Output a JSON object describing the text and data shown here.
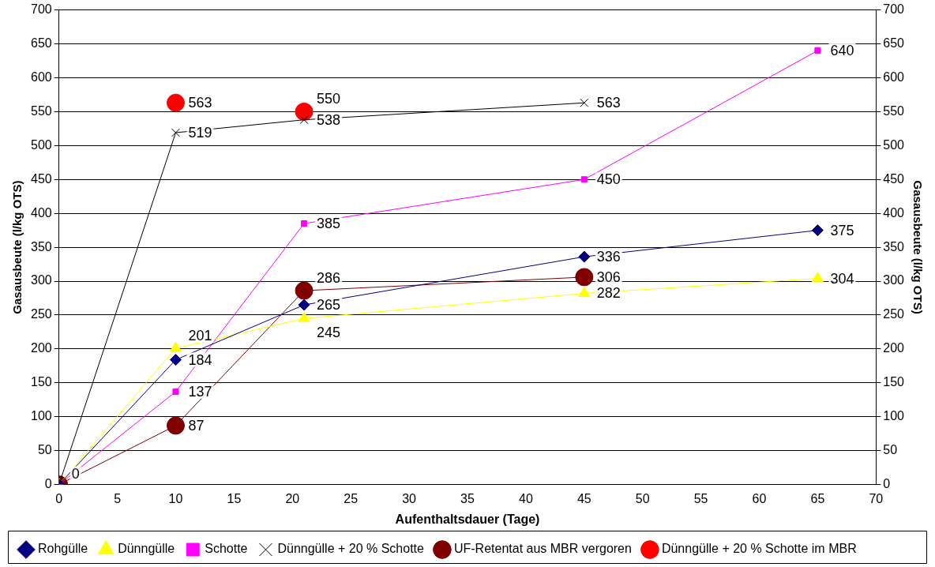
{
  "chart_data": {
    "type": "line",
    "xlabel": "Aufenthaltsdauer (Tage)",
    "ylabel": "Gasausbeute (l/kg OTS)",
    "y2label": "Gasausbeute (l/kg OTS)",
    "xlim": [
      0,
      70
    ],
    "xticks": [
      0,
      5,
      10,
      15,
      20,
      25,
      30,
      35,
      40,
      45,
      50,
      55,
      60,
      65,
      70
    ],
    "ylim": [
      0,
      700
    ],
    "yticks": [
      0,
      50,
      100,
      150,
      200,
      250,
      300,
      350,
      400,
      450,
      500,
      550,
      600,
      650,
      700
    ],
    "y2lim": [
      0,
      700
    ],
    "y2ticks": [
      0,
      50,
      100,
      150,
      200,
      250,
      300,
      350,
      400,
      450,
      500,
      550,
      600,
      650,
      700
    ],
    "grid": "y",
    "legend": "bottom",
    "series": [
      {
        "name": "Rohgülle",
        "color": "#000080",
        "marker": "diamond",
        "x": [
          0,
          10,
          21,
          45,
          65
        ],
        "values": [
          0,
          184,
          265,
          336,
          375
        ],
        "value_labels": [
          "0",
          "184",
          "265",
          "336",
          "375"
        ]
      },
      {
        "name": "Dünngülle",
        "color": "#ffff00",
        "marker": "triangle",
        "x": [
          0,
          10,
          21,
          45,
          65
        ],
        "values": [
          0,
          201,
          245,
          282,
          304
        ],
        "value_labels": [
          null,
          "201",
          "245",
          "282",
          "304"
        ]
      },
      {
        "name": "Schotte",
        "color": "#ff00ff",
        "marker": "square",
        "x": [
          0,
          10,
          21,
          45,
          65
        ],
        "values": [
          0,
          137,
          385,
          450,
          640
        ],
        "value_labels": [
          null,
          "137",
          "385",
          "450",
          "640"
        ]
      },
      {
        "name": "Dünngülle + 20 % Schotte",
        "color": "#000000",
        "marker": "cross",
        "x": [
          0,
          10,
          21,
          45
        ],
        "values": [
          0,
          519,
          538,
          563
        ],
        "value_labels": [
          null,
          "519",
          "538",
          "563"
        ]
      },
      {
        "name": "UF-Retentat aus MBR vergoren",
        "color": "#800000",
        "marker": "circle",
        "x": [
          0,
          10,
          21,
          45
        ],
        "values": [
          0,
          87,
          286,
          306
        ],
        "value_labels": [
          null,
          "87",
          "286",
          "306"
        ]
      },
      {
        "name": "Dünngülle + 20 % Schotte im MBR",
        "type": "scatter",
        "color": "#ff0000",
        "marker": "circle",
        "x": [
          10,
          21
        ],
        "values": [
          563,
          550
        ],
        "value_labels": [
          "563",
          "550"
        ]
      }
    ]
  }
}
